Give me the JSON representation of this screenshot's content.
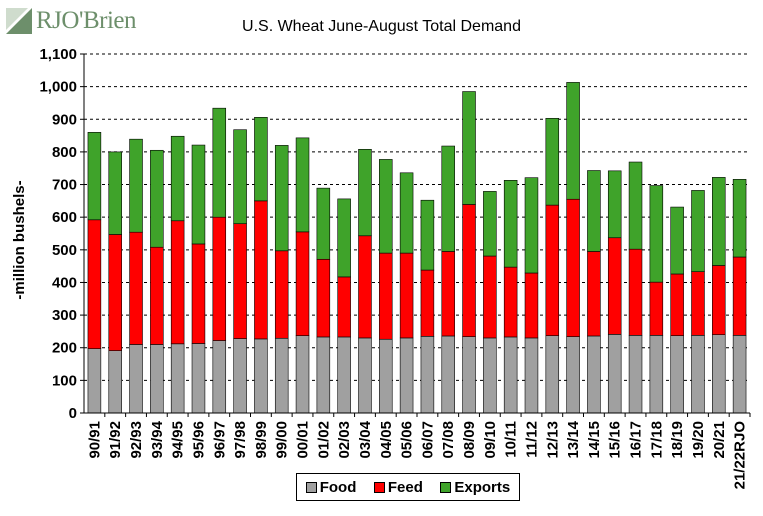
{
  "logo": {
    "text": "RJO'Brien",
    "brand_color": "#6d8f6b"
  },
  "chart_data": {
    "type": "bar",
    "stacked": true,
    "title": "U.S. Wheat June-August Total Demand",
    "ylabel": "-million bushels-",
    "xlabel": "",
    "ylim": [
      0,
      1100
    ],
    "yticks": [
      0,
      100,
      200,
      300,
      400,
      500,
      600,
      700,
      800,
      900,
      1000,
      1100
    ],
    "ytick_labels": [
      "0",
      "100",
      "200",
      "300",
      "400",
      "500",
      "600",
      "700",
      "800",
      "900",
      "1,000",
      "1,100"
    ],
    "grid": "horizontal dashed",
    "legend_position": "bottom",
    "categories": [
      "90/91",
      "91/92",
      "92/93",
      "93/94",
      "94/95",
      "95/96",
      "96/97",
      "97/98",
      "98/99",
      "99/00",
      "00/01",
      "01/02",
      "02/03",
      "03/04",
      "04/05",
      "05/06",
      "06/07",
      "07/08",
      "08/09",
      "09/10",
      "10/11",
      "11/12",
      "12/13",
      "13/14",
      "14/15",
      "15/16",
      "16/17",
      "17/18",
      "18/19",
      "19/20",
      "20/21",
      "21/22RJO"
    ],
    "series": [
      {
        "name": "Food",
        "color": "#a0a0a0",
        "values": [
          197,
          191,
          210,
          210,
          212,
          213,
          222,
          228,
          227,
          229,
          237,
          233,
          233,
          230,
          226,
          230,
          235,
          236,
          234,
          230,
          233,
          230,
          237,
          234,
          236,
          241,
          238,
          238,
          237,
          238,
          240,
          238
        ]
      },
      {
        "name": "Feed",
        "color": "#ff0000",
        "values": [
          395,
          356,
          344,
          298,
          377,
          305,
          378,
          352,
          423,
          268,
          318,
          238,
          184,
          313,
          264,
          260,
          203,
          259,
          405,
          251,
          214,
          199,
          400,
          421,
          259,
          296,
          264,
          163,
          189,
          195,
          212,
          240
        ]
      },
      {
        "name": "Exports",
        "color": "#3fa32a",
        "values": [
          268,
          253,
          285,
          297,
          259,
          303,
          334,
          288,
          256,
          323,
          288,
          218,
          239,
          265,
          287,
          246,
          214,
          323,
          346,
          198,
          266,
          292,
          266,
          358,
          248,
          205,
          267,
          296,
          205,
          249,
          270,
          238
        ]
      }
    ]
  }
}
